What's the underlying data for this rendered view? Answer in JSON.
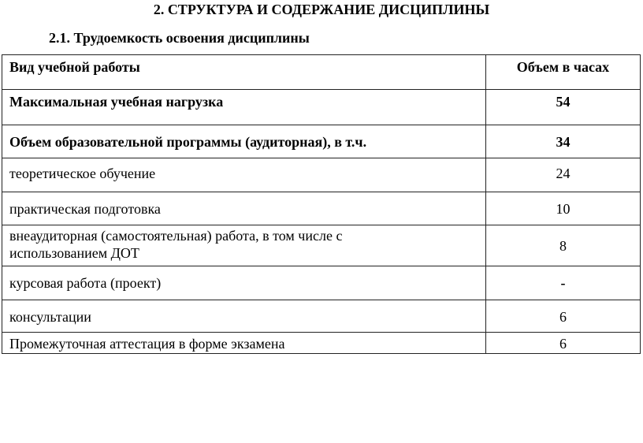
{
  "heading": "2. СТРУКТУРА И СОДЕРЖАНИЕ ДИСЦИПЛИНЫ",
  "subheading": "2.1. Трудоемкость освоения дисциплины",
  "table": {
    "headers": [
      "Вид учебной работы",
      "Объем в часах"
    ],
    "rows": [
      {
        "label": "Максимальная учебная нагрузка",
        "value": "54",
        "bold": true
      },
      {
        "label": "Объем образовательной программы (аудиторная), в т.ч.",
        "value": "34",
        "bold": true
      },
      {
        "label": "теоретическое обучение",
        "value": "24"
      },
      {
        "label": "практическая подготовка",
        "value": "10"
      },
      {
        "label": "внеаудиторная (самостоятельная) работа, в том числе с использованием ДОТ",
        "value": "8"
      },
      {
        "label": "курсовая работа (проект)",
        "value": "-"
      },
      {
        "label": "консультации",
        "value": "6"
      },
      {
        "label": "Промежуточная аттестация в форме экзамена",
        "value": "6"
      }
    ]
  }
}
